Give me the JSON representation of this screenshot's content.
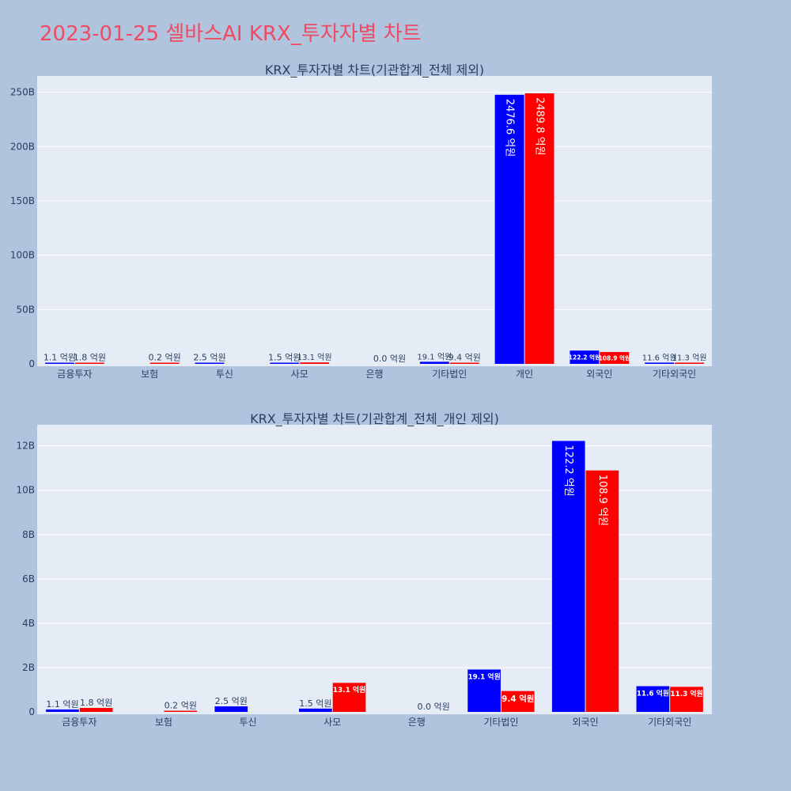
{
  "page_title": "2023-01-25 셀바스AI KRX_투자자별 차트",
  "colors": {
    "background": "#b0c4de",
    "plot_bg": "#e5ecf6",
    "buy": "#0000ff",
    "sell": "#ff0000",
    "title": "#ef4b62",
    "text": "#2a3f5f"
  },
  "chart_data": [
    {
      "type": "bar",
      "title": "KRX_투자자별 차트(기관합계_전체 제외)",
      "categories": [
        "금융투자",
        "보험",
        "투신",
        "사모",
        "은행",
        "기타법인",
        "개인",
        "외국인",
        "기타외국인"
      ],
      "yticks": [
        0,
        50,
        100,
        150,
        200,
        250
      ],
      "ytick_labels": [
        "0",
        "50B",
        "100B",
        "150B",
        "200B",
        "250B"
      ],
      "ylim": [
        0,
        265
      ],
      "series": [
        {
          "color": "#0000ff",
          "values": [
            0.11,
            0,
            0.25,
            0.15,
            0,
            1.91,
            247.66,
            12.22,
            1.16
          ],
          "labels": [
            "1.1 억원",
            "",
            "2.5 억원",
            "1.5 억원",
            "",
            "19.1 억원",
            "2476.6 억원",
            "122.2 억원",
            "11.6 억원"
          ]
        },
        {
          "color": "#ff0000",
          "values": [
            0.18,
            0.02,
            0,
            1.31,
            0,
            0.94,
            248.98,
            10.89,
            1.13
          ],
          "labels": [
            "1.8 억원",
            "0.2 억원",
            "",
            "13.1 억원",
            "0.0 억원",
            "9.4 억원",
            "2489.8 억원",
            "108.9 억원",
            "11.3 억원"
          ]
        }
      ]
    },
    {
      "type": "bar",
      "title": "KRX_투자자별 차트(기관합계_전체_개인 제외)",
      "categories": [
        "금융투자",
        "보험",
        "투신",
        "사모",
        "은행",
        "기타법인",
        "외국인",
        "기타외국인"
      ],
      "yticks": [
        0,
        2,
        4,
        6,
        8,
        10,
        12
      ],
      "ytick_labels": [
        "0",
        "2B",
        "4B",
        "6B",
        "8B",
        "10B",
        "12B"
      ],
      "ylim": [
        0,
        12.95
      ],
      "series": [
        {
          "color": "#0000ff",
          "values": [
            0.11,
            0,
            0.25,
            0.15,
            0,
            1.91,
            12.22,
            1.16
          ],
          "labels": [
            "1.1 억원",
            "",
            "2.5 억원",
            "1.5 억원",
            "",
            "19.1 억원",
            "122.2 억원",
            "11.6 억원"
          ]
        },
        {
          "color": "#ff0000",
          "values": [
            0.18,
            0.02,
            0,
            1.31,
            0,
            0.94,
            10.89,
            1.13
          ],
          "labels": [
            "1.8 억원",
            "0.2 억원",
            "",
            "13.1 억원",
            "0.0 억원",
            "9.4 억원",
            "108.9 억원",
            "11.3 억원"
          ]
        }
      ]
    }
  ]
}
